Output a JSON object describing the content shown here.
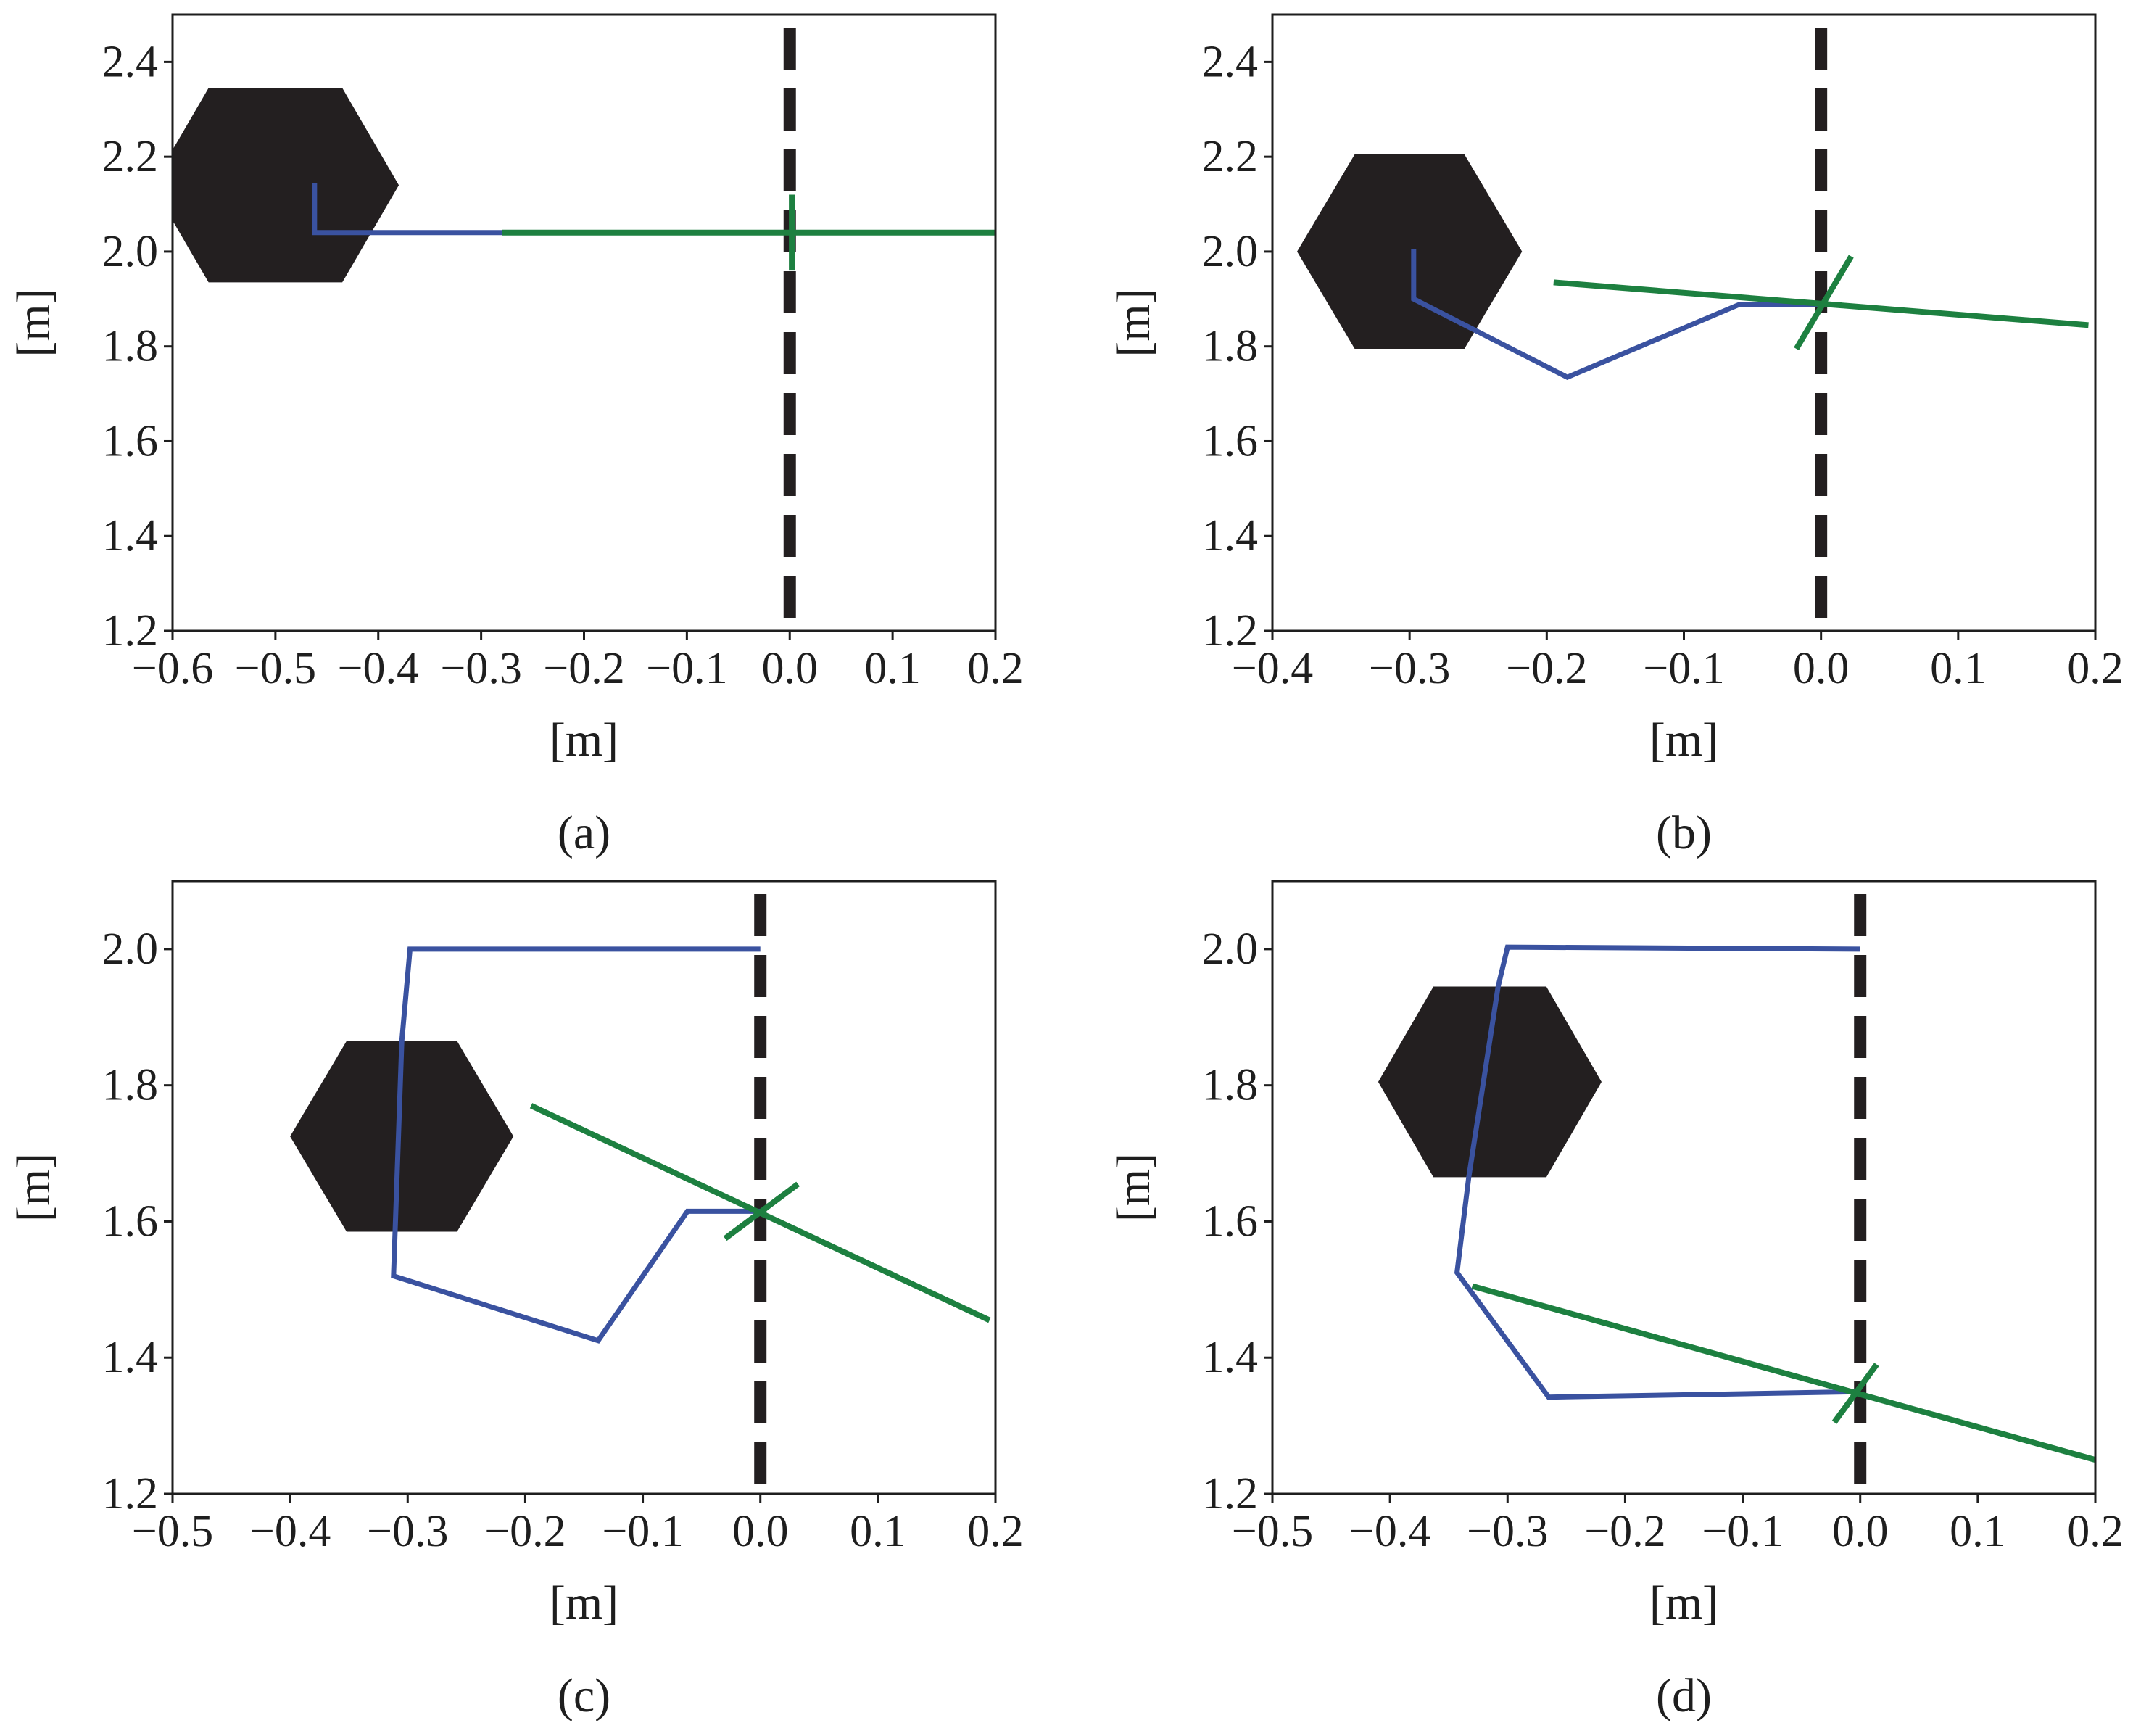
{
  "colors": {
    "path": "#3a52a0",
    "line": "#1d8040",
    "obstacle": "#231f20",
    "divider": "#231f20",
    "axis": "#1e1e1e"
  },
  "chart_data": [
    {
      "caption": "(a)",
      "type": "line",
      "xlabel": "[m]",
      "ylabel": "[m]",
      "xlim": [
        -0.6,
        0.2
      ],
      "ylim": [
        1.2,
        2.5
      ],
      "xticks": [
        -0.6,
        -0.5,
        -0.4,
        -0.3,
        -0.2,
        -0.1,
        0.0,
        0.1,
        0.2
      ],
      "xtick_labels": [
        "−0.6",
        "−0.5",
        "−0.4",
        "−0.3",
        "−0.2",
        "−0.1",
        "0.0",
        "0.1",
        "0.2"
      ],
      "yticks": [
        1.2,
        1.4,
        1.6,
        1.8,
        2.0,
        2.2,
        2.4
      ],
      "ytick_labels": [
        "1.2",
        "1.4",
        "1.6",
        "1.8",
        "2.0",
        "2.2",
        "2.4"
      ],
      "obstacle": {
        "shape": "hexagon",
        "center": [
          -0.51,
          2.14
        ],
        "vertices": [
          [
            -0.565,
            2.345
          ],
          [
            -0.435,
            2.345
          ],
          [
            -0.38,
            2.14
          ],
          [
            -0.435,
            1.935
          ],
          [
            -0.565,
            1.935
          ],
          [
            -0.62,
            2.14
          ]
        ]
      },
      "divider_x": 0.0,
      "path": [
        [
          -0.462,
          2.145
        ],
        [
          -0.462,
          2.04
        ],
        [
          -0.28,
          2.04
        ]
      ],
      "line": [
        [
          -0.28,
          2.04
        ],
        [
          0.2,
          2.04
        ]
      ],
      "crossing_mark": [
        [
          0.002,
          2.12
        ],
        [
          0.002,
          1.96
        ]
      ]
    },
    {
      "caption": "(b)",
      "type": "line",
      "xlabel": "[m]",
      "ylabel": "[m]",
      "xlim": [
        -0.4,
        0.2
      ],
      "ylim": [
        1.2,
        2.5
      ],
      "xticks": [
        -0.4,
        -0.3,
        -0.2,
        -0.1,
        0.0,
        0.1,
        0.2
      ],
      "xtick_labels": [
        "−0.4",
        "−0.3",
        "−0.2",
        "−0.1",
        "0.0",
        "0.1",
        "0.2"
      ],
      "yticks": [
        1.2,
        1.4,
        1.6,
        1.8,
        2.0,
        2.2,
        2.4
      ],
      "ytick_labels": [
        "1.2",
        "1.4",
        "1.6",
        "1.8",
        "2.0",
        "2.2",
        "2.4"
      ],
      "obstacle": {
        "shape": "hexagon",
        "center": [
          -0.3,
          2.0
        ],
        "vertices": [
          [
            -0.34,
            2.205
          ],
          [
            -0.26,
            2.205
          ],
          [
            -0.218,
            2.0
          ],
          [
            -0.26,
            1.795
          ],
          [
            -0.34,
            1.795
          ],
          [
            -0.382,
            2.0
          ]
        ]
      },
      "divider_x": 0.0,
      "path": [
        [
          -0.297,
          2.005
        ],
        [
          -0.297,
          1.9
        ],
        [
          -0.185,
          1.735
        ],
        [
          -0.06,
          1.888
        ],
        [
          0.0,
          1.888
        ]
      ],
      "line": [
        [
          -0.195,
          1.935
        ],
        [
          0.195,
          1.845
        ]
      ],
      "crossing_mark": [
        [
          -0.018,
          1.795
        ],
        [
          0.022,
          1.99
        ]
      ]
    },
    {
      "caption": "(c)",
      "type": "line",
      "xlabel": "[m]",
      "ylabel": "[m]",
      "xlim": [
        -0.5,
        0.2
      ],
      "ylim": [
        1.2,
        2.1
      ],
      "xticks": [
        -0.5,
        -0.4,
        -0.3,
        -0.2,
        -0.1,
        0.0,
        0.1,
        0.2
      ],
      "xtick_labels": [
        "−0.5",
        "−0.4",
        "−0.3",
        "−0.2",
        "−0.1",
        "0.0",
        "0.1",
        "0.2"
      ],
      "yticks": [
        1.2,
        1.4,
        1.6,
        1.8,
        2.0
      ],
      "ytick_labels": [
        "1.2",
        "1.4",
        "1.6",
        "1.8",
        "2.0"
      ],
      "obstacle": {
        "shape": "hexagon",
        "center": [
          -0.305,
          1.725
        ],
        "vertices": [
          [
            -0.352,
            1.865
          ],
          [
            -0.258,
            1.865
          ],
          [
            -0.21,
            1.725
          ],
          [
            -0.258,
            1.585
          ],
          [
            -0.352,
            1.585
          ],
          [
            -0.4,
            1.725
          ]
        ]
      },
      "divider_x": 0.0,
      "path": [
        [
          0.0,
          2.0
        ],
        [
          -0.298,
          2.0
        ],
        [
          -0.305,
          1.865
        ],
        [
          -0.312,
          1.52
        ],
        [
          -0.138,
          1.425
        ],
        [
          -0.062,
          1.615
        ],
        [
          0.0,
          1.615
        ]
      ],
      "line": [
        [
          -0.195,
          1.77
        ],
        [
          0.195,
          1.455
        ]
      ],
      "crossing_mark": [
        [
          -0.03,
          1.575
        ],
        [
          0.032,
          1.655
        ]
      ]
    },
    {
      "caption": "(d)",
      "type": "line",
      "xlabel": "[m]",
      "ylabel": "[m]",
      "xlim": [
        -0.5,
        0.2
      ],
      "ylim": [
        1.2,
        2.1
      ],
      "xticks": [
        -0.5,
        -0.4,
        -0.3,
        -0.2,
        -0.1,
        0.0,
        0.1,
        0.2
      ],
      "xtick_labels": [
        "−0.5",
        "−0.4",
        "−0.3",
        "−0.2",
        "−0.1",
        "0.0",
        "0.1",
        "0.2"
      ],
      "yticks": [
        1.2,
        1.4,
        1.6,
        1.8,
        2.0
      ],
      "ytick_labels": [
        "1.2",
        "1.4",
        "1.6",
        "1.8",
        "2.0"
      ],
      "obstacle": {
        "shape": "hexagon",
        "center": [
          -0.315,
          1.805
        ],
        "vertices": [
          [
            -0.363,
            1.945
          ],
          [
            -0.267,
            1.945
          ],
          [
            -0.22,
            1.805
          ],
          [
            -0.267,
            1.665
          ],
          [
            -0.363,
            1.665
          ],
          [
            -0.41,
            1.805
          ]
        ]
      },
      "divider_x": 0.0,
      "path": [
        [
          0.0,
          2.0
        ],
        [
          -0.3,
          2.003
        ],
        [
          -0.308,
          1.945
        ],
        [
          -0.333,
          1.665
        ],
        [
          -0.343,
          1.525
        ],
        [
          -0.265,
          1.342
        ],
        [
          0.0,
          1.35
        ]
      ],
      "line": [
        [
          -0.33,
          1.505
        ],
        [
          0.2,
          1.25
        ]
      ],
      "crossing_mark": [
        [
          -0.022,
          1.305
        ],
        [
          0.014,
          1.39
        ]
      ]
    }
  ]
}
